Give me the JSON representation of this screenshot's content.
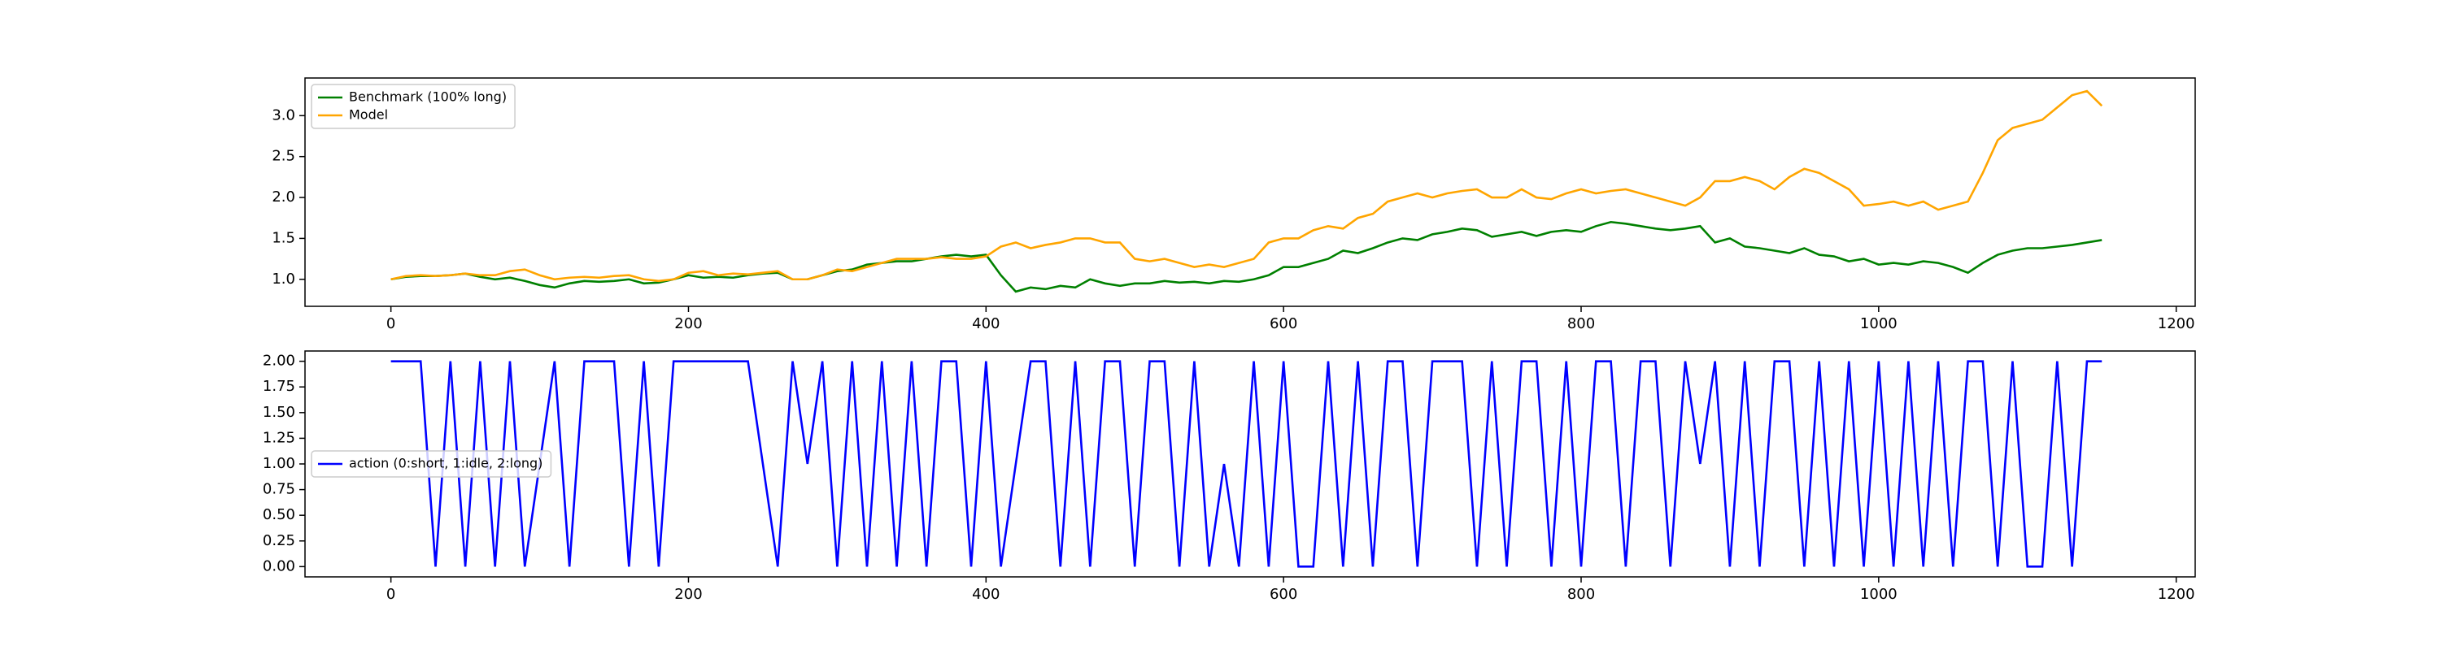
{
  "chart_data": [
    {
      "type": "line",
      "x": [
        0,
        10,
        20,
        30,
        40,
        50,
        60,
        70,
        80,
        90,
        100,
        110,
        120,
        130,
        140,
        150,
        160,
        170,
        180,
        190,
        200,
        210,
        220,
        230,
        240,
        250,
        260,
        270,
        280,
        290,
        300,
        310,
        320,
        330,
        340,
        350,
        360,
        370,
        380,
        390,
        400,
        410,
        420,
        430,
        440,
        450,
        460,
        470,
        480,
        490,
        500,
        510,
        520,
        530,
        540,
        550,
        560,
        570,
        580,
        590,
        600,
        610,
        620,
        630,
        640,
        650,
        660,
        670,
        680,
        690,
        700,
        710,
        720,
        730,
        740,
        750,
        760,
        770,
        780,
        790,
        800,
        810,
        820,
        830,
        840,
        850,
        860,
        870,
        880,
        890,
        900,
        910,
        920,
        930,
        940,
        950,
        960,
        970,
        980,
        990,
        1000,
        1010,
        1020,
        1030,
        1040,
        1050,
        1060,
        1070,
        1080,
        1090,
        1100,
        1110,
        1120,
        1130,
        1140,
        1150
      ],
      "series": [
        {
          "name": "Benchmark (100% long)",
          "color": "green",
          "values": [
            1.0,
            1.03,
            1.04,
            1.04,
            1.05,
            1.07,
            1.03,
            1.0,
            1.02,
            0.98,
            0.93,
            0.9,
            0.95,
            0.98,
            0.97,
            0.98,
            1.0,
            0.95,
            0.96,
            1.0,
            1.05,
            1.02,
            1.03,
            1.02,
            1.05,
            1.07,
            1.08,
            1.0,
            1.0,
            1.05,
            1.1,
            1.12,
            1.18,
            1.2,
            1.22,
            1.22,
            1.25,
            1.28,
            1.3,
            1.28,
            1.3,
            1.05,
            0.85,
            0.9,
            0.88,
            0.92,
            0.9,
            1.0,
            0.95,
            0.92,
            0.95,
            0.95,
            0.98,
            0.96,
            0.97,
            0.95,
            0.98,
            0.97,
            1.0,
            1.05,
            1.15,
            1.15,
            1.2,
            1.25,
            1.35,
            1.32,
            1.38,
            1.45,
            1.5,
            1.48,
            1.55,
            1.58,
            1.62,
            1.6,
            1.52,
            1.55,
            1.58,
            1.53,
            1.58,
            1.6,
            1.58,
            1.65,
            1.7,
            1.68,
            1.65,
            1.62,
            1.6,
            1.62,
            1.65,
            1.45,
            1.5,
            1.4,
            1.38,
            1.35,
            1.32,
            1.38,
            1.3,
            1.28,
            1.22,
            1.25,
            1.18,
            1.2,
            1.18,
            1.22,
            1.2,
            1.15,
            1.08,
            1.2,
            1.3,
            1.35,
            1.38,
            1.38,
            1.4,
            1.42,
            1.45,
            1.48
          ]
        },
        {
          "name": "Model",
          "color": "orange",
          "values": [
            1.0,
            1.04,
            1.05,
            1.04,
            1.05,
            1.07,
            1.05,
            1.05,
            1.1,
            1.12,
            1.05,
            1.0,
            1.02,
            1.03,
            1.02,
            1.04,
            1.05,
            1.0,
            0.98,
            1.0,
            1.08,
            1.1,
            1.05,
            1.07,
            1.06,
            1.08,
            1.1,
            1.0,
            1.0,
            1.05,
            1.12,
            1.1,
            1.15,
            1.2,
            1.25,
            1.25,
            1.25,
            1.27,
            1.25,
            1.25,
            1.28,
            1.4,
            1.45,
            1.38,
            1.42,
            1.45,
            1.5,
            1.5,
            1.45,
            1.45,
            1.25,
            1.22,
            1.25,
            1.2,
            1.15,
            1.18,
            1.15,
            1.2,
            1.25,
            1.45,
            1.5,
            1.5,
            1.6,
            1.65,
            1.62,
            1.75,
            1.8,
            1.95,
            2.0,
            2.05,
            2.0,
            2.05,
            2.08,
            2.1,
            2.0,
            2.0,
            2.1,
            2.0,
            1.98,
            2.05,
            2.1,
            2.05,
            2.08,
            2.1,
            2.05,
            2.0,
            1.95,
            1.9,
            2.0,
            2.2,
            2.2,
            2.25,
            2.2,
            2.1,
            2.25,
            2.35,
            2.3,
            2.2,
            2.1,
            1.9,
            1.92,
            1.95,
            1.9,
            1.95,
            1.85,
            1.9,
            1.95,
            2.3,
            2.7,
            2.85,
            2.9,
            2.95,
            3.1,
            3.25,
            3.3,
            3.12
          ]
        }
      ],
      "xlim": [
        -57.75,
        1212.75
      ],
      "ylim": [
        0.67,
        3.46
      ],
      "xticks": [
        0,
        200,
        400,
        600,
        800,
        1000,
        1200
      ],
      "yticks": [
        {
          "value": 1.0,
          "label": "1.0"
        },
        {
          "value": 1.5,
          "label": "1.5"
        },
        {
          "value": 2.0,
          "label": "2.0"
        },
        {
          "value": 2.5,
          "label": "2.5"
        },
        {
          "value": 3.0,
          "label": "3.0"
        }
      ],
      "legend": "upper left"
    },
    {
      "type": "line",
      "x": [
        0,
        10,
        20,
        30,
        40,
        50,
        60,
        70,
        80,
        90,
        100,
        110,
        120,
        130,
        140,
        150,
        160,
        170,
        180,
        190,
        200,
        210,
        220,
        230,
        240,
        250,
        260,
        270,
        280,
        290,
        300,
        310,
        320,
        330,
        340,
        350,
        360,
        370,
        380,
        390,
        400,
        410,
        420,
        430,
        440,
        450,
        460,
        470,
        480,
        490,
        500,
        510,
        520,
        530,
        540,
        550,
        560,
        570,
        580,
        590,
        600,
        610,
        620,
        630,
        640,
        650,
        660,
        670,
        680,
        690,
        700,
        710,
        720,
        730,
        740,
        750,
        760,
        770,
        780,
        790,
        800,
        810,
        820,
        830,
        840,
        850,
        860,
        870,
        880,
        890,
        900,
        910,
        920,
        930,
        940,
        950,
        960,
        970,
        980,
        990,
        1000,
        1010,
        1020,
        1030,
        1040,
        1050,
        1060,
        1070,
        1080,
        1090,
        1100,
        1110,
        1120,
        1130,
        1140,
        1150
      ],
      "series": [
        {
          "name": "action (0:short, 1:idle, 2:long)",
          "color": "blue",
          "values": [
            2,
            2,
            2,
            0,
            2,
            0,
            2,
            0,
            2,
            0,
            1,
            2,
            0,
            2,
            2,
            2,
            0,
            2,
            0,
            2,
            2,
            2,
            2,
            2,
            2,
            1,
            0,
            2,
            1,
            2,
            0,
            2,
            0,
            2,
            0,
            2,
            0,
            2,
            2,
            0,
            2,
            0,
            1,
            2,
            2,
            0,
            2,
            0,
            2,
            2,
            0,
            2,
            2,
            0,
            2,
            0,
            1,
            0,
            2,
            0,
            2,
            0,
            0,
            2,
            0,
            2,
            0,
            2,
            2,
            0,
            2,
            2,
            2,
            0,
            2,
            0,
            2,
            2,
            0,
            2,
            0,
            2,
            2,
            0,
            2,
            2,
            0,
            2,
            1,
            2,
            0,
            2,
            0,
            2,
            2,
            0,
            2,
            0,
            2,
            0,
            2,
            0,
            2,
            0,
            2,
            0,
            2,
            2,
            0,
            2,
            0,
            0,
            2,
            0,
            2,
            2
          ]
        }
      ],
      "xlim": [
        -57.75,
        1212.75
      ],
      "ylim": [
        -0.1,
        2.1
      ],
      "xticks": [
        0,
        200,
        400,
        600,
        800,
        1000,
        1200
      ],
      "yticks": [
        {
          "value": 0,
          "label": "0.00"
        },
        {
          "value": 0.25,
          "label": "0.25"
        },
        {
          "value": 0.5,
          "label": "0.50"
        },
        {
          "value": 0.75,
          "label": "0.75"
        },
        {
          "value": 1.0,
          "label": "1.00"
        },
        {
          "value": 1.25,
          "label": "1.25"
        },
        {
          "value": 1.5,
          "label": "1.50"
        },
        {
          "value": 1.75,
          "label": "1.75"
        },
        {
          "value": 2.0,
          "label": "2.00"
        }
      ],
      "legend": "center left"
    }
  ]
}
